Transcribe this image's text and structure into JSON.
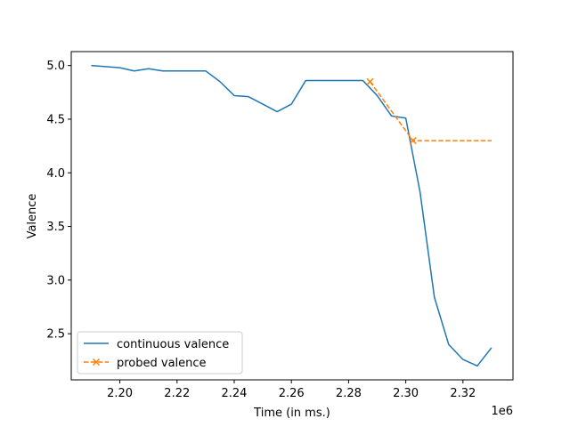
{
  "chart_data": {
    "type": "line",
    "xlabel": "Time (in ms.)",
    "ylabel": "Valence",
    "x_offset_label": "1e6",
    "xlim": [
      2.183,
      2.3375
    ],
    "ylim": [
      2.07,
      5.13
    ],
    "x_ticks": [
      2.2,
      2.22,
      2.24,
      2.26,
      2.28,
      2.3,
      2.32
    ],
    "x_tick_labels": [
      "2.20",
      "2.22",
      "2.24",
      "2.26",
      "2.28",
      "2.30",
      "2.32"
    ],
    "y_ticks": [
      2.5,
      3.0,
      3.5,
      4.0,
      4.5,
      5.0
    ],
    "y_tick_labels": [
      "2.5",
      "3.0",
      "3.5",
      "4.0",
      "4.5",
      "5.0"
    ],
    "grid": false,
    "legend_position": "lower-left",
    "series": [
      {
        "name": "continuous valence",
        "color": "#1f77b4",
        "style": "solid",
        "marker": "none",
        "x": [
          2.19,
          2.195,
          2.2,
          2.205,
          2.21,
          2.215,
          2.22,
          2.225,
          2.23,
          2.235,
          2.24,
          2.245,
          2.25,
          2.255,
          2.26,
          2.265,
          2.27,
          2.275,
          2.28,
          2.285,
          2.29,
          2.295,
          2.3,
          2.305,
          2.31,
          2.315,
          2.32,
          2.325,
          2.33
        ],
        "y": [
          5.0,
          4.99,
          4.98,
          4.95,
          4.97,
          4.95,
          4.95,
          4.95,
          4.95,
          4.85,
          4.72,
          4.71,
          4.64,
          4.57,
          4.64,
          4.86,
          4.86,
          4.86,
          4.86,
          4.86,
          4.72,
          4.53,
          4.51,
          3.82,
          2.84,
          2.4,
          2.26,
          2.2,
          2.37
        ]
      },
      {
        "name": "probed valence",
        "color": "#ff7f0e",
        "style": "dashed",
        "marker": "x",
        "x": [
          2.2875,
          2.3025,
          2.33
        ],
        "y": [
          4.85,
          4.3,
          4.3
        ],
        "marker_x": [
          2.2875,
          2.3025
        ]
      }
    ]
  }
}
